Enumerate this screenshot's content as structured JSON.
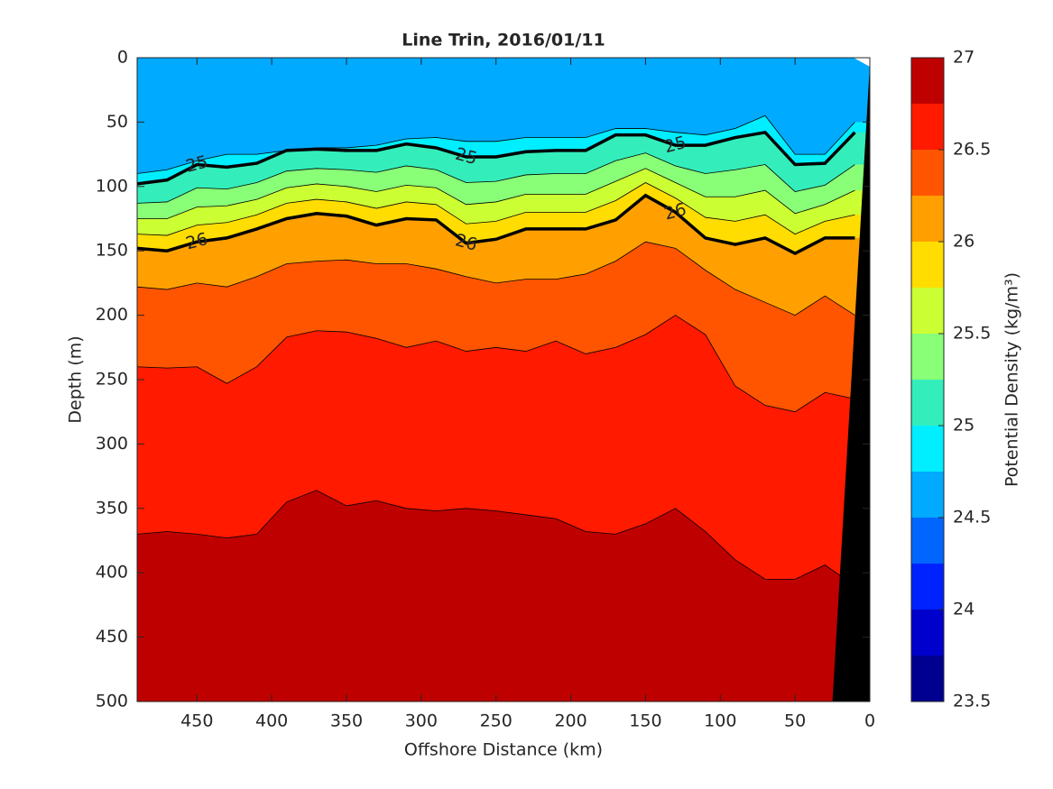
{
  "chart_data": {
    "type": "contourf",
    "title": "Line Trin, 2016/01/11",
    "x_label": "Offshore Distance (km)",
    "y_label": "Depth (m)",
    "colorbar_label": "Potential Density (kg/m³)",
    "xlim": [
      490,
      0
    ],
    "xticks": [
      450,
      400,
      350,
      300,
      250,
      200,
      150,
      100,
      50,
      0
    ],
    "ylim": [
      0,
      500
    ],
    "yticks": [
      0,
      50,
      100,
      150,
      200,
      250,
      300,
      350,
      400,
      450,
      500
    ],
    "x": [
      490,
      470,
      450,
      430,
      410,
      390,
      370,
      350,
      330,
      310,
      290,
      270,
      250,
      230,
      210,
      190,
      170,
      150,
      130,
      110,
      90,
      70,
      50,
      30,
      10
    ],
    "background_level_color": "#00aaff",
    "contours": [
      {
        "level": 24.75,
        "depth": [
          90,
          87,
          80,
          75,
          75,
          72,
          70,
          70,
          68,
          63,
          62,
          65,
          65,
          62,
          62,
          62,
          55,
          55,
          58,
          60,
          55,
          45,
          75,
          75,
          50
        ]
      },
      {
        "level": 25,
        "depth": [
          98,
          95,
          83,
          85,
          82,
          72,
          71,
          72,
          72,
          67,
          70,
          77,
          77,
          73,
          72,
          72,
          60,
          60,
          68,
          68,
          62,
          58,
          83,
          82,
          58
        ]
      },
      {
        "level": 25.25,
        "depth": [
          113,
          112,
          101,
          102,
          97,
          88,
          86,
          87,
          89,
          84,
          87,
          97,
          96,
          91,
          90,
          90,
          80,
          74,
          84,
          90,
          87,
          83,
          104,
          99,
          83
        ]
      },
      {
        "level": 25.5,
        "depth": [
          125,
          125,
          116,
          115,
          110,
          101,
          98,
          100,
          104,
          99,
          101,
          114,
          112,
          106,
          106,
          106,
          96,
          86,
          97,
          108,
          108,
          103,
          121,
          114,
          103
        ]
      },
      {
        "level": 25.75,
        "depth": [
          137,
          138,
          130,
          128,
          122,
          113,
          110,
          112,
          117,
          112,
          114,
          129,
          127,
          120,
          120,
          120,
          111,
          97,
          109,
          124,
          127,
          122,
          137,
          127,
          122
        ]
      },
      {
        "level": 26,
        "depth": [
          148,
          150,
          143,
          140,
          133,
          125,
          121,
          123,
          130,
          125,
          126,
          144,
          141,
          133,
          133,
          133,
          126,
          107,
          120,
          140,
          145,
          140,
          152,
          140,
          140
        ]
      },
      {
        "level": 26.25,
        "depth": [
          178,
          180,
          175,
          178,
          170,
          160,
          158,
          157,
          160,
          160,
          164,
          170,
          175,
          172,
          172,
          168,
          158,
          143,
          148,
          165,
          180,
          190,
          200,
          185,
          200
        ]
      },
      {
        "level": 26.5,
        "depth": [
          240,
          241,
          240,
          253,
          240,
          217,
          212,
          213,
          218,
          225,
          220,
          228,
          225,
          228,
          220,
          230,
          225,
          215,
          200,
          215,
          255,
          270,
          275,
          260,
          265
        ]
      },
      {
        "level": 26.75,
        "depth": [
          370,
          368,
          370,
          373,
          370,
          345,
          336,
          348,
          344,
          350,
          352,
          350,
          352,
          355,
          358,
          368,
          370,
          362,
          350,
          368,
          390,
          405,
          405,
          394,
          410
        ]
      }
    ],
    "clim": [
      23.5,
      27
    ],
    "colorbar_ticks": [
      23.5,
      24,
      24.5,
      25,
      25.5,
      26,
      26.5,
      27
    ],
    "levels": [
      23.5,
      23.75,
      24,
      24.25,
      24.5,
      24.75,
      25,
      25.25,
      25.5,
      25.75,
      26,
      26.25,
      26.5,
      26.75,
      27
    ],
    "colors": [
      "#000090",
      "#0000cc",
      "#0022ff",
      "#0066ff",
      "#00aaff",
      "#00eeff",
      "#33eebb",
      "#88ff77",
      "#ccff33",
      "#ffdd00",
      "#ffa000",
      "#ff5500",
      "#ff1a00",
      "#bf0000"
    ]
  }
}
